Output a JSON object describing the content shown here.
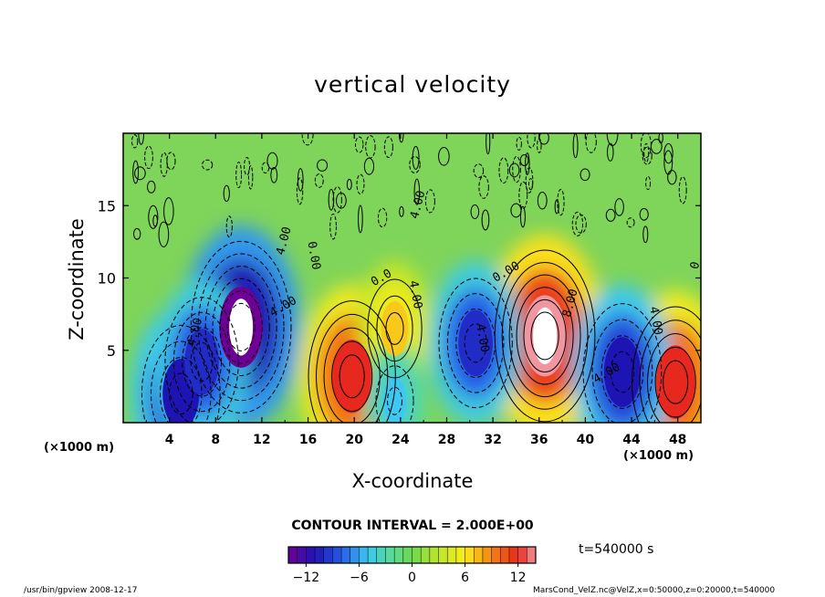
{
  "chart_data": {
    "type": "heatmap",
    "title": "vertical velocity",
    "xlabel": "X-coordinate",
    "ylabel": "Z-coordinate",
    "x_unit": "(×1000 m)",
    "x_unit_right": "(×1000 m)",
    "x_ticks": [
      "4",
      "8",
      "12",
      "16",
      "20",
      "24",
      "28",
      "32",
      "36",
      "40",
      "44",
      "48"
    ],
    "y_ticks": [
      "5",
      "10",
      "15"
    ],
    "xlim": [
      0,
      50
    ],
    "ylim": [
      0,
      20
    ],
    "contour_interval_label": "CONTOUR INTERVAL = 2.000E+00",
    "colorbar": {
      "ticks": [
        "−12",
        "−6",
        "0",
        "6",
        "12"
      ],
      "range": [
        -14,
        14
      ]
    },
    "contour_labels": [
      "4.00",
      "4.00",
      "0.00",
      "4.00",
      "0.0",
      "4.00",
      "4.00",
      "0.00",
      "4.00",
      "8.00",
      "4.00",
      "4.00",
      "0"
    ],
    "features": [
      {
        "x": 36.5,
        "z": 6.0,
        "w": 14
      },
      {
        "x": 19.8,
        "z": 3.2,
        "w": 12
      },
      {
        "x": 47.8,
        "z": 2.8,
        "w": 12
      },
      {
        "x": 23.5,
        "z": 6.5,
        "w": 7
      },
      {
        "x": 10.2,
        "z": 6.6,
        "w": -14
      },
      {
        "x": 5.0,
        "z": 2.0,
        "w": -11
      },
      {
        "x": 6.8,
        "z": 4.2,
        "w": -10
      },
      {
        "x": 30.5,
        "z": 5.5,
        "w": -10
      },
      {
        "x": 43.2,
        "z": 3.5,
        "w": -11
      },
      {
        "x": 23.5,
        "z": 1.5,
        "w": -5
      }
    ]
  },
  "time_label": "t=540000 s",
  "footer_left": "/usr/bin/gpview   2008-12-17",
  "footer_right": "MarsCond_VelZ.nc@VelZ,x=0:50000,z=0:20000,t=540000"
}
